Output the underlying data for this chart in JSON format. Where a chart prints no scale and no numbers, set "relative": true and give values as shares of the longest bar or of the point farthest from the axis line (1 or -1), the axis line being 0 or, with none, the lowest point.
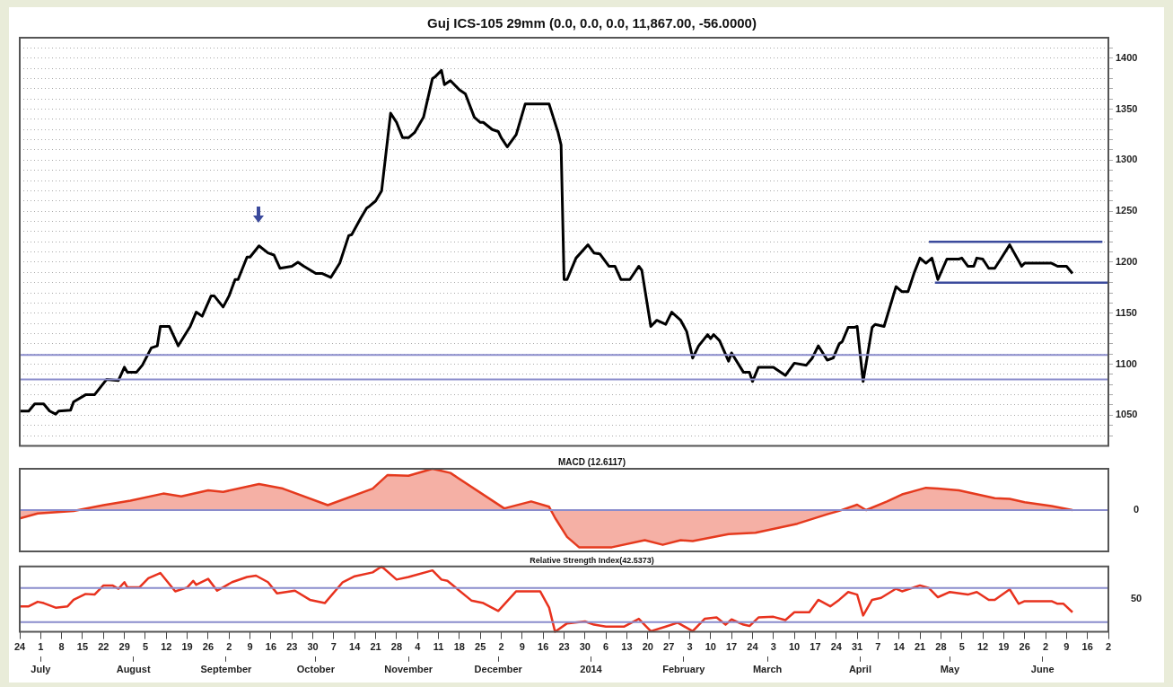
{
  "chart_data": [
    {
      "type": "line",
      "title": "Guj ICS-105 29mm (0.0, 0.0, 0.0, 11,867.00, -56.0000)",
      "series": [
        {
          "color": "#000000",
          "x": [
            "2013-06-24",
            "2013-06-27",
            "2013-06-29",
            "2013-07-02",
            "2013-07-04",
            "2013-07-06",
            "2013-07-07",
            "2013-07-11",
            "2013-07-12",
            "2013-07-16",
            "2013-07-19",
            "2013-07-23",
            "2013-07-27",
            "2013-07-29",
            "2013-07-30",
            "2013-08-02",
            "2013-08-04",
            "2013-08-07",
            "2013-08-09",
            "2013-08-10",
            "2013-08-13",
            "2013-08-16",
            "2013-08-20",
            "2013-08-22",
            "2013-08-24",
            "2013-08-27",
            "2013-08-28",
            "2013-08-31",
            "2013-09-02",
            "2013-09-04",
            "2013-09-05",
            "2013-09-08",
            "2013-09-09",
            "2013-09-12",
            "2013-09-15",
            "2013-09-17",
            "2013-09-19",
            "2013-09-23",
            "2013-09-25",
            "2013-09-27",
            "2013-10-01",
            "2013-10-03",
            "2013-10-06",
            "2013-10-09",
            "2013-10-12",
            "2013-10-13",
            "2013-10-16",
            "2013-10-18",
            "2013-10-19",
            "2013-10-21",
            "2013-10-23",
            "2013-10-26",
            "2013-10-28",
            "2013-10-30",
            "2013-11-01",
            "2013-11-03",
            "2013-11-06",
            "2013-11-09",
            "2013-11-10",
            "2013-11-12",
            "2013-11-13",
            "2013-11-15",
            "2013-11-18",
            "2013-11-20",
            "2013-11-23",
            "2013-11-25",
            "2013-11-26",
            "2013-11-29",
            "2013-12-01",
            "2013-12-02",
            "2013-12-04",
            "2013-12-07",
            "2013-12-10",
            "2013-12-18",
            "2013-12-21",
            "2013-12-22",
            "2013-12-23",
            "2013-12-24",
            "2013-12-27",
            "2013-12-31",
            "2014-01-02",
            "2014-01-04",
            "2014-01-07",
            "2014-01-09",
            "2014-01-11",
            "2014-01-14",
            "2014-01-17",
            "2014-01-18",
            "2014-01-21",
            "2014-01-23",
            "2014-01-26",
            "2014-01-28",
            "2014-01-31",
            "2014-02-02",
            "2014-02-04",
            "2014-02-06",
            "2014-02-09",
            "2014-02-10",
            "2014-02-11",
            "2014-02-13",
            "2014-02-16",
            "2014-02-17",
            "2014-02-21",
            "2014-02-23",
            "2014-02-24",
            "2014-02-26",
            "2014-03-03",
            "2014-03-07",
            "2014-03-10",
            "2014-03-14",
            "2014-03-16",
            "2014-03-18",
            "2014-03-21",
            "2014-03-23",
            "2014-03-25",
            "2014-03-26",
            "2014-03-28",
            "2014-03-30",
            "2014-03-31",
            "2014-04-02",
            "2014-04-05",
            "2014-04-06",
            "2014-04-09",
            "2014-04-13",
            "2014-04-15",
            "2014-04-17",
            "2014-04-19",
            "2014-04-21",
            "2014-04-23",
            "2014-04-25",
            "2014-04-27",
            "2014-04-30",
            "2014-05-02",
            "2014-05-04",
            "2014-05-05",
            "2014-05-07",
            "2014-05-09",
            "2014-05-10",
            "2014-05-12",
            "2014-05-14",
            "2014-05-16",
            "2014-05-18",
            "2014-05-21",
            "2014-05-25",
            "2014-05-26",
            "2014-06-04",
            "2014-06-06",
            "2014-06-09",
            "2014-06-11"
          ],
          "values": [
            1054,
            1054,
            1061,
            1061,
            1054,
            1051,
            1054,
            1055,
            1063,
            1070,
            1070,
            1085,
            1084,
            1097,
            1092,
            1092,
            1099,
            1116,
            1118,
            1137,
            1137,
            1118,
            1137,
            1151,
            1147,
            1167,
            1167,
            1156,
            1167,
            1183,
            1183,
            1205,
            1205,
            1216,
            1209,
            1207,
            1194,
            1196,
            1200,
            1196,
            1189,
            1189,
            1185,
            1199,
            1226,
            1227,
            1243,
            1253,
            1255,
            1260,
            1270,
            1346,
            1337,
            1322,
            1322,
            1327,
            1342,
            1380,
            1382,
            1388,
            1374,
            1378,
            1369,
            1365,
            1342,
            1337,
            1337,
            1330,
            1328,
            1322,
            1313,
            1325,
            1355,
            1355,
            1327,
            1315,
            1183,
            1183,
            1204,
            1217,
            1209,
            1208,
            1196,
            1196,
            1183,
            1183,
            1196,
            1192,
            1137,
            1143,
            1139,
            1151,
            1143,
            1132,
            1106,
            1118,
            1129,
            1125,
            1129,
            1123,
            1103,
            1111,
            1092,
            1092,
            1083,
            1097,
            1097,
            1089,
            1101,
            1099,
            1106,
            1118,
            1104,
            1106,
            1120,
            1122,
            1136,
            1136,
            1137,
            1083,
            1136,
            1139,
            1137,
            1176,
            1171,
            1171,
            1189,
            1204,
            1199,
            1204,
            1183,
            1203,
            1203,
            1203,
            1204,
            1196,
            1196,
            1204,
            1203,
            1194,
            1194,
            1203,
            1217,
            1196,
            1199,
            1199,
            1196,
            1196,
            1189
          ]
        },
        {
          "color": "#3b4a9c",
          "x": [
            "2014-04-24",
            "2014-06-21"
          ],
          "values": [
            1220,
            1220
          ]
        },
        {
          "color": "#3b4a9c",
          "x": [
            "2014-04-26",
            "2014-06-23"
          ],
          "values": [
            1180,
            1180
          ]
        }
      ],
      "xlim": [
        "2013-06-24",
        "2014-06-23"
      ],
      "ylim": [
        1020,
        1420
      ],
      "yticks": [
        {
          "value": 1030,
          "label": null
        },
        {
          "value": 1040,
          "label": null
        },
        1050,
        {
          "value": 1060,
          "label": null
        },
        {
          "value": 1070,
          "label": null
        },
        {
          "value": 1080,
          "label": null
        },
        {
          "value": 1090,
          "label": null
        },
        1100,
        {
          "value": 1110,
          "label": null
        },
        {
          "value": 1120,
          "label": null
        },
        {
          "value": 1130,
          "label": null
        },
        {
          "value": 1140,
          "label": null
        },
        1150,
        {
          "value": 1160,
          "label": null
        },
        {
          "value": 1170,
          "label": null
        },
        {
          "value": 1180,
          "label": null
        },
        {
          "value": 1190,
          "label": null
        },
        1200,
        {
          "value": 1210,
          "label": null
        },
        {
          "value": 1220,
          "label": null
        },
        {
          "value": 1230,
          "label": null
        },
        {
          "value": 1240,
          "label": null
        },
        1250,
        {
          "value": 1260,
          "label": null
        },
        {
          "value": 1270,
          "label": null
        },
        {
          "value": 1280,
          "label": null
        },
        {
          "value": 1290,
          "label": null
        },
        1300,
        {
          "value": 1310,
          "label": null
        },
        {
          "value": 1320,
          "label": null
        },
        {
          "value": 1330,
          "label": null
        },
        {
          "value": 1340,
          "label": null
        },
        1350,
        {
          "value": 1360,
          "label": null
        },
        {
          "value": 1370,
          "label": null
        },
        {
          "value": 1380,
          "label": null
        },
        {
          "value": 1390,
          "label": null
        },
        1400,
        {
          "value": 1410,
          "label": null
        }
      ],
      "ref_lines": [
        {
          "axis": "y",
          "value": 1109,
          "color": "#8a8ccc"
        },
        {
          "axis": "y",
          "value": 1085,
          "color": "#8a8ccc"
        }
      ],
      "grid": "y",
      "tick_labels": "y",
      "marker": "none"
    },
    {
      "type": "area",
      "title": "MACD (12.6117)",
      "relative": true,
      "series": [
        {
          "color": "#e53a1e",
          "x": [
            "2013-06-24",
            "2013-06-30",
            "2013-07-12",
            "2013-07-22",
            "2013-07-31",
            "2013-08-11",
            "2013-08-17",
            "2013-08-26",
            "2013-08-31",
            "2013-09-12",
            "2013-09-20",
            "2013-10-05",
            "2013-10-20",
            "2013-10-25",
            "2013-11-01",
            "2013-11-09",
            "2013-11-15",
            "2013-12-03",
            "2013-12-12",
            "2013-12-18",
            "2013-12-20",
            "2013-12-24",
            "2013-12-28",
            "2013-12-30",
            "2014-01-08",
            "2014-01-19",
            "2014-01-25",
            "2014-01-31",
            "2014-02-04",
            "2014-02-16",
            "2014-02-25",
            "2014-03-11",
            "2014-03-21",
            "2014-03-25",
            "2014-03-31",
            "2014-04-03",
            "2014-04-10",
            "2014-04-15",
            "2014-04-23",
            "2014-04-27",
            "2014-05-04",
            "2014-05-16",
            "2014-05-21",
            "2014-05-26",
            "2014-06-04",
            "2014-06-11"
          ],
          "values": [
            -0.2,
            -0.08,
            -0.02,
            0.12,
            0.23,
            0.4,
            0.33,
            0.48,
            0.44,
            0.63,
            0.52,
            0.12,
            0.52,
            0.85,
            0.83,
            1,
            0.9,
            0.04,
            0.21,
            0.08,
            -0.19,
            -0.65,
            -0.9,
            -0.9,
            -0.9,
            -0.73,
            -0.84,
            -0.73,
            -0.75,
            -0.58,
            -0.55,
            -0.33,
            -0.1,
            -0.02,
            0.13,
            0,
            0.21,
            0.38,
            0.54,
            0.52,
            0.48,
            0.29,
            0.27,
            0.19,
            0.1,
            0
          ]
        }
      ],
      "xlim": [
        "2013-06-24",
        "2014-06-23"
      ],
      "ref_lines": [
        {
          "axis": "y",
          "value": 0,
          "label": "0",
          "color": "#8a8ccc"
        }
      ],
      "tick_labels": false,
      "marker": "none"
    },
    {
      "type": "line",
      "title": "Relative Strength Index(42.5373)",
      "relative": true,
      "series": [
        {
          "color": "#e8321e",
          "x": [
            "2013-06-24",
            "2013-06-27",
            "2013-06-30",
            "2013-07-02",
            "2013-07-06",
            "2013-07-10",
            "2013-07-12",
            "2013-07-16",
            "2013-07-19",
            "2013-07-22",
            "2013-07-25",
            "2013-07-27",
            "2013-07-29",
            "2013-07-30",
            "2013-08-03",
            "2013-08-06",
            "2013-08-10",
            "2013-08-15",
            "2013-08-19",
            "2013-08-21",
            "2013-08-22",
            "2013-08-26",
            "2013-08-29",
            "2013-09-03",
            "2013-09-08",
            "2013-09-11",
            "2013-09-15",
            "2013-09-18",
            "2013-09-24",
            "2013-09-29",
            "2013-10-04",
            "2013-10-10",
            "2013-10-14",
            "2013-10-20",
            "2013-10-23",
            "2013-10-28",
            "2013-11-01",
            "2013-11-09",
            "2013-11-12",
            "2013-11-14",
            "2013-11-22",
            "2013-11-26",
            "2013-12-01",
            "2013-12-07",
            "2013-12-15",
            "2013-12-18",
            "2013-12-20",
            "2013-12-24",
            "2013-12-30",
            "2014-01-02",
            "2014-01-06",
            "2014-01-12",
            "2014-01-17",
            "2014-01-21",
            "2014-01-26",
            "2014-01-30",
            "2014-02-04",
            "2014-02-08",
            "2014-02-12",
            "2014-02-15",
            "2014-02-17",
            "2014-02-21",
            "2014-02-23",
            "2014-02-26",
            "2014-03-03",
            "2014-03-07",
            "2014-03-10",
            "2014-03-15",
            "2014-03-18",
            "2014-03-22",
            "2014-03-25",
            "2014-03-28",
            "2014-03-31",
            "2014-04-02",
            "2014-04-05",
            "2014-04-08",
            "2014-04-13",
            "2014-04-15",
            "2014-04-21",
            "2014-04-24",
            "2014-04-27",
            "2014-05-01",
            "2014-05-07",
            "2014-05-10",
            "2014-05-14",
            "2014-05-16",
            "2014-05-21",
            "2014-05-24",
            "2014-05-26",
            "2014-06-04",
            "2014-06-06",
            "2014-06-08",
            "2014-06-11"
          ],
          "values": [
            0.39,
            0.39,
            0.46,
            0.44,
            0.37,
            0.39,
            0.49,
            0.58,
            0.57,
            0.71,
            0.71,
            0.66,
            0.76,
            0.68,
            0.68,
            0.82,
            0.9,
            0.62,
            0.68,
            0.78,
            0.72,
            0.81,
            0.63,
            0.76,
            0.84,
            0.86,
            0.76,
            0.59,
            0.63,
            0.49,
            0.44,
            0.76,
            0.85,
            0.91,
            1,
            0.8,
            0.84,
            0.94,
            0.8,
            0.78,
            0.48,
            0.44,
            0.32,
            0.62,
            0.62,
            0.37,
            0,
            0.13,
            0.16,
            0.11,
            0.08,
            0.08,
            0.2,
            0.01,
            0.08,
            0.14,
            0.01,
            0.2,
            0.22,
            0.11,
            0.19,
            0.11,
            0.09,
            0.22,
            0.23,
            0.18,
            0.3,
            0.3,
            0.49,
            0.39,
            0.49,
            0.61,
            0.57,
            0.25,
            0.49,
            0.52,
            0.66,
            0.62,
            0.71,
            0.67,
            0.53,
            0.61,
            0.57,
            0.61,
            0.49,
            0.49,
            0.65,
            0.43,
            0.47,
            0.47,
            0.43,
            0.43,
            0.3
          ]
        }
      ],
      "xlim": [
        "2013-06-24",
        "2014-06-23"
      ],
      "xticks": [
        {
          "value": "2013-06-24",
          "label": "24"
        },
        {
          "value": "2013-07-01",
          "label": "1"
        },
        {
          "value": "2013-07-08",
          "label": "8"
        },
        {
          "value": "2013-07-15",
          "label": "15"
        },
        {
          "value": "2013-07-22",
          "label": "22"
        },
        {
          "value": "2013-07-29",
          "label": "29"
        },
        {
          "value": "2013-08-05",
          "label": "5"
        },
        {
          "value": "2013-08-12",
          "label": "12"
        },
        {
          "value": "2013-08-19",
          "label": "19"
        },
        {
          "value": "2013-08-26",
          "label": "26"
        },
        {
          "value": "2013-09-02",
          "label": "2"
        },
        {
          "value": "2013-09-09",
          "label": "9"
        },
        {
          "value": "2013-09-16",
          "label": "16"
        },
        {
          "value": "2013-09-23",
          "label": "23"
        },
        {
          "value": "2013-09-30",
          "label": "30"
        },
        {
          "value": "2013-10-07",
          "label": "7"
        },
        {
          "value": "2013-10-14",
          "label": "14"
        },
        {
          "value": "2013-10-21",
          "label": "21"
        },
        {
          "value": "2013-10-28",
          "label": "28"
        },
        {
          "value": "2013-11-04",
          "label": "4"
        },
        {
          "value": "2013-11-11",
          "label": "11"
        },
        {
          "value": "2013-11-18",
          "label": "18"
        },
        {
          "value": "2013-11-25",
          "label": "25"
        },
        {
          "value": "2013-12-02",
          "label": "2"
        },
        {
          "value": "2013-12-09",
          "label": "9"
        },
        {
          "value": "2013-12-16",
          "label": "16"
        },
        {
          "value": "2013-12-23",
          "label": "23"
        },
        {
          "value": "2013-12-30",
          "label": "30"
        },
        {
          "value": "2014-01-06",
          "label": "6"
        },
        {
          "value": "2014-01-13",
          "label": "13"
        },
        {
          "value": "2014-01-20",
          "label": "20"
        },
        {
          "value": "2014-01-27",
          "label": "27"
        },
        {
          "value": "2014-02-03",
          "label": "3"
        },
        {
          "value": "2014-02-10",
          "label": "10"
        },
        {
          "value": "2014-02-17",
          "label": "17"
        },
        {
          "value": "2014-02-24",
          "label": "24"
        },
        {
          "value": "2014-03-03",
          "label": "3"
        },
        {
          "value": "2014-03-10",
          "label": "10"
        },
        {
          "value": "2014-03-17",
          "label": "17"
        },
        {
          "value": "2014-03-24",
          "label": "24"
        },
        {
          "value": "2014-03-31",
          "label": "31"
        },
        {
          "value": "2014-04-07",
          "label": "7"
        },
        {
          "value": "2014-04-14",
          "label": "14"
        },
        {
          "value": "2014-04-21",
          "label": "21"
        },
        {
          "value": "2014-04-28",
          "label": "28"
        },
        {
          "value": "2014-05-05",
          "label": "5"
        },
        {
          "value": "2014-05-12",
          "label": "12"
        },
        {
          "value": "2014-05-19",
          "label": "19"
        },
        {
          "value": "2014-05-26",
          "label": "26"
        },
        {
          "value": "2014-06-02",
          "label": "2"
        },
        {
          "value": "2014-06-09",
          "label": "9"
        },
        {
          "value": "2014-06-16",
          "label": "16"
        },
        {
          "value": "2014-06-23",
          "label": "2"
        }
      ],
      "x2lim": [
        "2013-06-24",
        "2014-06-23"
      ],
      "x2ticks": [
        {
          "value": "2013-07-01",
          "label": "July"
        },
        {
          "value": "2013-08-01",
          "label": "August"
        },
        {
          "value": "2013-09-01",
          "label": "September"
        },
        {
          "value": "2013-10-01",
          "label": "October"
        },
        {
          "value": "2013-11-01",
          "label": "November"
        },
        {
          "value": "2013-12-01",
          "label": "December"
        },
        {
          "value": "2014-01-01",
          "label": "2014"
        },
        {
          "value": "2014-02-01",
          "label": "February"
        },
        {
          "value": "2014-03-01",
          "label": "March"
        },
        {
          "value": "2014-04-01",
          "label": "April"
        },
        {
          "value": "2014-05-01",
          "label": "May"
        },
        {
          "value": "2014-06-01",
          "label": "June"
        }
      ],
      "ref_lines": [
        {
          "axis": "y",
          "value": 0.67,
          "color": "#8a8ccc"
        },
        {
          "axis": "y",
          "value": 0.15,
          "color": "#8a8ccc"
        }
      ],
      "annotations": [
        "50"
      ],
      "tick_labels": "x",
      "marker": "none"
    }
  ]
}
